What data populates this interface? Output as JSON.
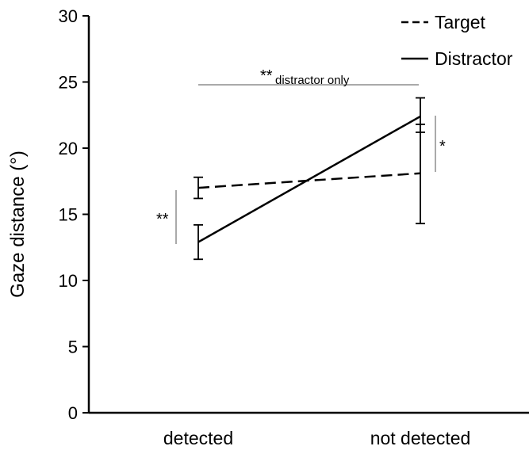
{
  "chart_data": {
    "type": "line",
    "title": "",
    "xlabel": "",
    "ylabel": "Gaze distance (°)",
    "categories": [
      "detected",
      "not detected"
    ],
    "ylim": [
      0,
      30
    ],
    "yticks": [
      0,
      5,
      10,
      15,
      20,
      25,
      30
    ],
    "grid": false,
    "legend_position": "top-right",
    "series": [
      {
        "name": "Target",
        "style": "dashed",
        "color": "#000000",
        "values": [
          17.0,
          18.1
        ],
        "error_low": [
          16.2,
          14.3
        ],
        "error_high": [
          17.8,
          21.8
        ]
      },
      {
        "name": "Distractor",
        "style": "solid",
        "color": "#000000",
        "values": [
          12.9,
          22.4
        ],
        "error_low": [
          11.6,
          21.2
        ],
        "error_high": [
          14.2,
          23.8
        ]
      }
    ],
    "annotations": {
      "top_bracket": {
        "main": "**",
        "sub": "distractor only"
      },
      "left_bracket": "**",
      "right_bracket": "*"
    }
  }
}
